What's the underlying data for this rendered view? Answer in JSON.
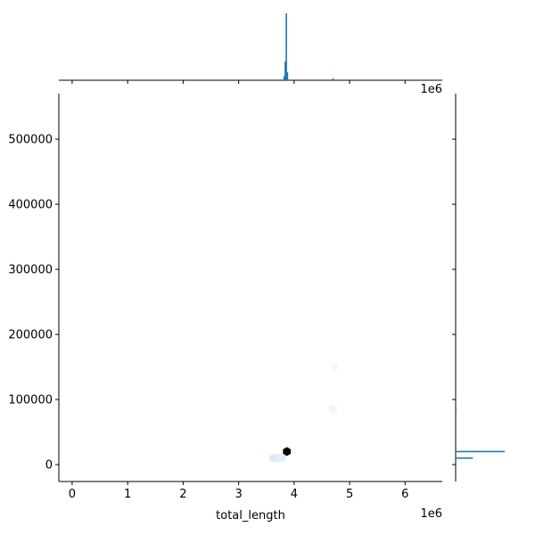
{
  "chart_data": {
    "type": "hexbin-joint",
    "xlabel": "total_length",
    "ylabel": "",
    "x_scale_label": "1e6",
    "y_scale_label": "",
    "xlim": [
      -0.24,
      6.67
    ],
    "ylim": [
      -26000,
      570000
    ],
    "x_ticks": [
      0,
      1,
      2,
      3,
      4,
      5,
      6
    ],
    "y_ticks": [
      0,
      100000,
      200000,
      300000,
      400000,
      500000
    ],
    "x_tick_labels": [
      "0",
      "1",
      "2",
      "3",
      "4",
      "5",
      "6"
    ],
    "y_tick_labels": [
      "0",
      "100000",
      "200000",
      "300000",
      "400000",
      "500000"
    ],
    "colors": {
      "dense": "#000000",
      "light": "#dbe9f6",
      "faint": "#f3f7fc",
      "marginal": "#1f77b4"
    },
    "hexbins": [
      {
        "x": 3.87,
        "y": 20000,
        "count_level": 1.0
      },
      {
        "x": 3.63,
        "y": 10000,
        "count_level": 0.12
      },
      {
        "x": 3.71,
        "y": 10000,
        "count_level": 0.1
      },
      {
        "x": 3.79,
        "y": 10000,
        "count_level": 0.08
      },
      {
        "x": 4.7,
        "y": 85000,
        "count_level": 0.03
      },
      {
        "x": 4.72,
        "y": 150000,
        "count_level": 0.02
      }
    ],
    "x_marginal": [
      {
        "x": 3.86,
        "height": 1.0
      },
      {
        "x": 3.84,
        "height": 0.28
      },
      {
        "x": 3.88,
        "height": 0.12
      },
      {
        "x": 3.82,
        "height": 0.06
      },
      {
        "x": 4.7,
        "height": 0.03
      }
    ],
    "y_marginal": [
      {
        "y": 20000,
        "width": 1.0
      },
      {
        "y": 10000,
        "width": 0.35
      },
      {
        "y": 85000,
        "width": 0.02
      }
    ]
  }
}
